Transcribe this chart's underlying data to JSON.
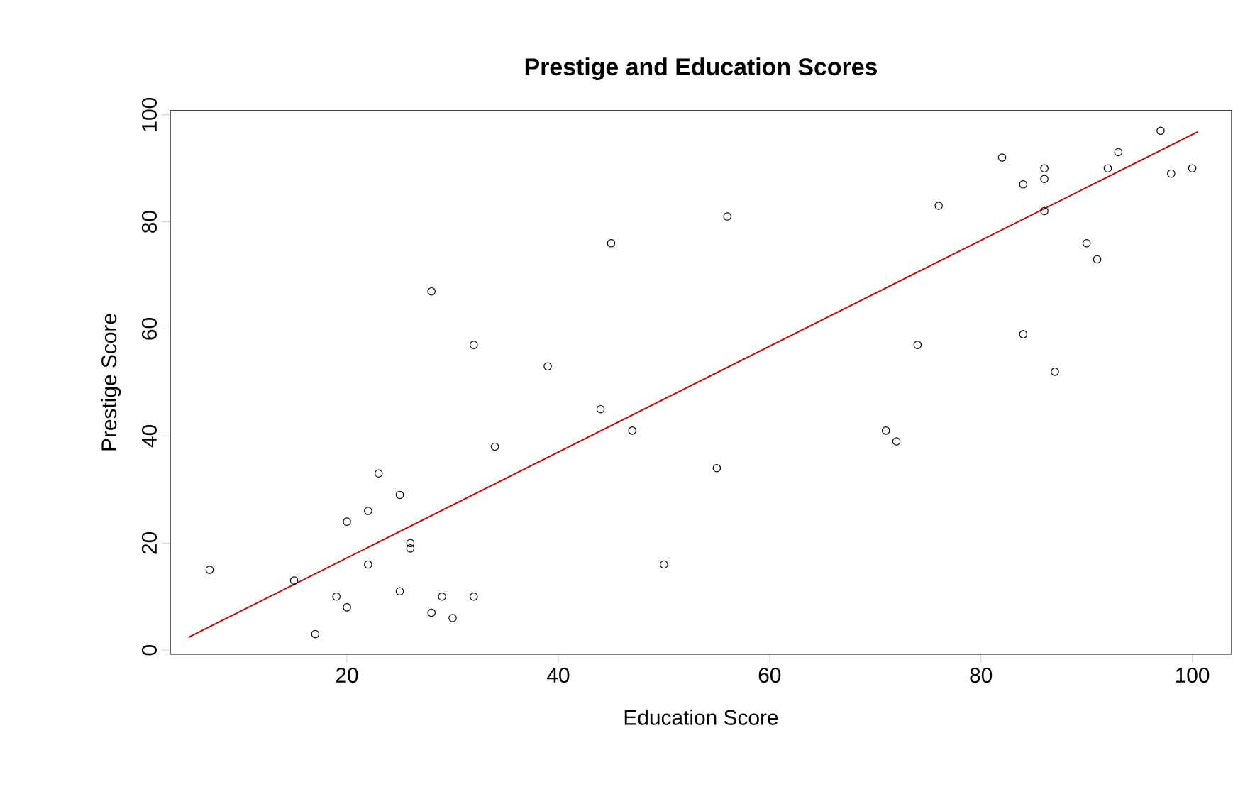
{
  "chart_data": {
    "type": "scatter",
    "title": "Prestige and Education Scores",
    "xlabel": "Education Score",
    "ylabel": "Prestige Score",
    "xlim": [
      3.28,
      103.72
    ],
    "ylim": [
      -0.76,
      100.76
    ],
    "xticks": [
      20,
      40,
      60,
      80,
      100
    ],
    "yticks": [
      0,
      20,
      40,
      60,
      80,
      100
    ],
    "grid": false,
    "series": [
      {
        "color": "#000000",
        "marker": "circle",
        "x": [
          86,
          76,
          92,
          90,
          86,
          84,
          93,
          100,
          87,
          86,
          74,
          98,
          97,
          84,
          91,
          34,
          45,
          56,
          44,
          82,
          72,
          55,
          71,
          50,
          23,
          39,
          28,
          32,
          22,
          25,
          29,
          7,
          26,
          19,
          15,
          20,
          26,
          28,
          17,
          22,
          30,
          25,
          20,
          47,
          32
        ],
        "values": [
          82,
          83,
          90,
          76,
          90,
          87,
          93,
          90,
          52,
          88,
          57,
          89,
          97,
          59,
          73,
          38,
          76,
          81,
          45,
          92,
          39,
          34,
          41,
          16,
          33,
          53,
          67,
          57,
          26,
          29,
          10,
          15,
          19,
          10,
          13,
          24,
          20,
          7,
          3,
          16,
          6,
          11,
          8,
          41,
          10
        ]
      },
      {
        "type": "line",
        "color": "#cc0000",
        "x": [
          5,
          100.5
        ],
        "values": [
          2.4,
          96.8
        ]
      }
    ]
  }
}
